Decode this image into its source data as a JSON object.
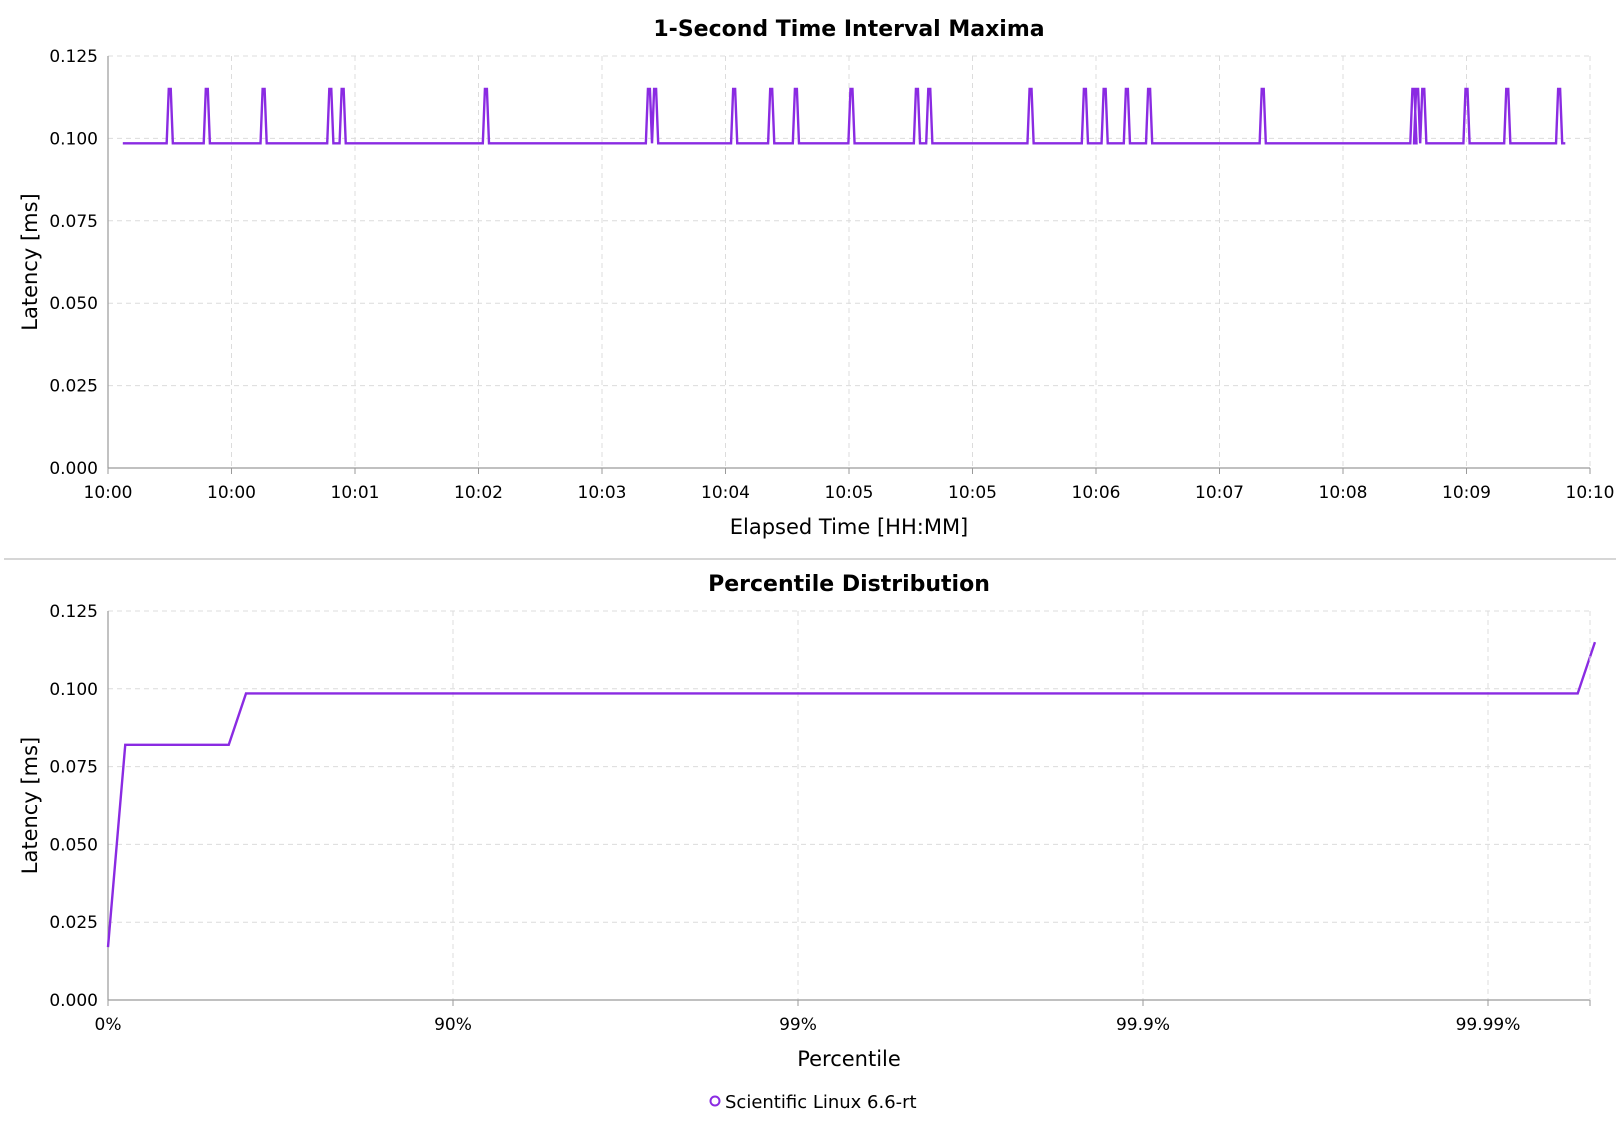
{
  "chart_data": [
    {
      "type": "line",
      "title": "1-Second Time Interval Maxima",
      "xlabel": "Elapsed Time [HH:MM]",
      "ylabel": "Latency [ms]",
      "x_tick_labels": [
        "10:00",
        "10:00",
        "10:01",
        "10:02",
        "10:03",
        "10:04",
        "10:05",
        "10:05",
        "10:06",
        "10:07",
        "10:08",
        "10:09",
        "10:10"
      ],
      "y_tick_labels": [
        "0.000",
        "0.025",
        "0.050",
        "0.075",
        "0.100",
        "0.125"
      ],
      "xlim": [
        0,
        12
      ],
      "ylim": [
        0,
        0.125
      ],
      "grid": true,
      "series": [
        {
          "name": "Scientific Linux 6.6-rt",
          "color": "#8a2be2",
          "baseline": 0.0985,
          "spike_value": 0.115,
          "spike_x": [
            0.5,
            0.8,
            1.26,
            1.8,
            1.9,
            3.06,
            4.38,
            4.43,
            5.07,
            5.37,
            5.57,
            6.02,
            6.55,
            6.65,
            7.47,
            7.91,
            8.07,
            8.25,
            8.43,
            9.35,
            10.57,
            10.6,
            10.65,
            11.0,
            11.33,
            11.75
          ],
          "x_start": 0.12,
          "x_end": 11.8
        }
      ]
    },
    {
      "type": "line",
      "title": "Percentile Distribution",
      "xlabel": "Percentile",
      "ylabel": "Latency [ms]",
      "x_tick_labels": [
        "0%",
        "90%",
        "99%",
        "99.9%",
        "99.99%"
      ],
      "y_tick_labels": [
        "0.000",
        "0.025",
        "0.050",
        "0.075",
        "0.100",
        "0.125"
      ],
      "ylim": [
        0,
        0.125
      ],
      "grid": true,
      "series": [
        {
          "name": "Scientific Linux 6.6-rt",
          "color": "#8a2be2",
          "points": [
            [
              0.0,
              0.017
            ],
            [
              0.05,
              0.082
            ],
            [
              0.35,
              0.082
            ],
            [
              0.4,
              0.0985
            ],
            [
              4.26,
              0.0985
            ],
            [
              4.31,
              0.115
            ]
          ]
        }
      ]
    }
  ],
  "legend": {
    "position": "bottom-center",
    "label": "Scientific Linux 6.6-rt",
    "color": "#8a2be2"
  }
}
